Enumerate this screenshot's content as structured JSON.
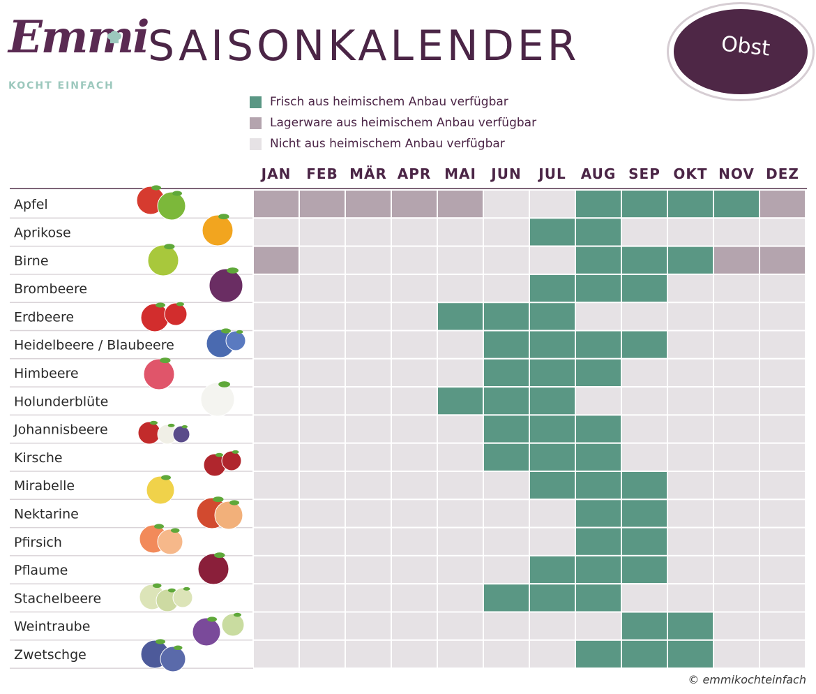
{
  "header": {
    "logo_script": "Emmi",
    "logo_sub": "KOCHT EINFACH",
    "title": "SAISONKALENDER",
    "badge": "Obst"
  },
  "legend": [
    {
      "label": "Frisch aus heimischem Anbau verfügbar",
      "color": "#5a9784"
    },
    {
      "label": "Lagerware aus heimischem Anbau verfügbar",
      "color": "#b4a4ae"
    },
    {
      "label": "Nicht aus heimischem Anbau verfügbar",
      "color": "#e6e2e5"
    }
  ],
  "footer": "© emmikochteinfach",
  "colors": {
    "fresh": "#5a9784",
    "storage": "#b4a4ae",
    "none": "#e6e2e5",
    "text": "#4b2546",
    "header_line": "#7d6477"
  },
  "chart_data": {
    "type": "heatmap",
    "title": "SAISONKALENDER",
    "subtitle": "Obst",
    "x": [
      "JAN",
      "FEB",
      "MÄR",
      "APR",
      "MAI",
      "JUN",
      "JUL",
      "AUG",
      "SEP",
      "OKT",
      "NOV",
      "DEZ"
    ],
    "legend": {
      "F": "Frisch aus heimischem Anbau verfügbar",
      "L": "Lagerware aus heimischem Anbau verfügbar",
      "N": "Nicht aus heimischem Anbau verfügbar"
    },
    "rows": [
      {
        "name": "Apfel",
        "icon": "apple-icon",
        "values": [
          "L",
          "L",
          "L",
          "L",
          "L",
          "N",
          "N",
          "F",
          "F",
          "F",
          "F",
          "L"
        ]
      },
      {
        "name": "Aprikose",
        "icon": "apricot-icon",
        "values": [
          "N",
          "N",
          "N",
          "N",
          "N",
          "N",
          "F",
          "F",
          "N",
          "N",
          "N",
          "N"
        ]
      },
      {
        "name": "Birne",
        "icon": "pear-icon",
        "values": [
          "L",
          "N",
          "N",
          "N",
          "N",
          "N",
          "N",
          "F",
          "F",
          "F",
          "L",
          "L"
        ]
      },
      {
        "name": "Brombeere",
        "icon": "blackberry-icon",
        "values": [
          "N",
          "N",
          "N",
          "N",
          "N",
          "N",
          "F",
          "F",
          "F",
          "N",
          "N",
          "N"
        ]
      },
      {
        "name": "Erdbeere",
        "icon": "strawberry-icon",
        "values": [
          "N",
          "N",
          "N",
          "N",
          "F",
          "F",
          "F",
          "N",
          "N",
          "N",
          "N",
          "N"
        ]
      },
      {
        "name": "Heidelbeere / Blaubeere",
        "icon": "blueberry-icon",
        "values": [
          "N",
          "N",
          "N",
          "N",
          "N",
          "F",
          "F",
          "F",
          "F",
          "N",
          "N",
          "N"
        ]
      },
      {
        "name": "Himbeere",
        "icon": "raspberry-icon",
        "values": [
          "N",
          "N",
          "N",
          "N",
          "N",
          "F",
          "F",
          "F",
          "N",
          "N",
          "N",
          "N"
        ]
      },
      {
        "name": "Holunderblüte",
        "icon": "elderflower-icon",
        "values": [
          "N",
          "N",
          "N",
          "N",
          "F",
          "F",
          "F",
          "N",
          "N",
          "N",
          "N",
          "N"
        ]
      },
      {
        "name": "Johannisbeere",
        "icon": "currant-icon",
        "values": [
          "N",
          "N",
          "N",
          "N",
          "N",
          "F",
          "F",
          "F",
          "N",
          "N",
          "N",
          "N"
        ]
      },
      {
        "name": "Kirsche",
        "icon": "cherry-icon",
        "values": [
          "N",
          "N",
          "N",
          "N",
          "N",
          "F",
          "F",
          "F",
          "N",
          "N",
          "N",
          "N"
        ]
      },
      {
        "name": "Mirabelle",
        "icon": "mirabelle-icon",
        "values": [
          "N",
          "N",
          "N",
          "N",
          "N",
          "N",
          "F",
          "F",
          "F",
          "N",
          "N",
          "N"
        ]
      },
      {
        "name": "Nektarine",
        "icon": "nectarine-icon",
        "values": [
          "N",
          "N",
          "N",
          "N",
          "N",
          "N",
          "N",
          "F",
          "F",
          "N",
          "N",
          "N"
        ]
      },
      {
        "name": "Pfirsich",
        "icon": "peach-icon",
        "values": [
          "N",
          "N",
          "N",
          "N",
          "N",
          "N",
          "N",
          "F",
          "F",
          "N",
          "N",
          "N"
        ]
      },
      {
        "name": "Pflaume",
        "icon": "plum-icon",
        "values": [
          "N",
          "N",
          "N",
          "N",
          "N",
          "N",
          "F",
          "F",
          "F",
          "N",
          "N",
          "N"
        ]
      },
      {
        "name": "Stachelbeere",
        "icon": "gooseberry-icon",
        "values": [
          "N",
          "N",
          "N",
          "N",
          "N",
          "F",
          "F",
          "F",
          "N",
          "N",
          "N",
          "N"
        ]
      },
      {
        "name": "Weintraube",
        "icon": "grape-icon",
        "values": [
          "N",
          "N",
          "N",
          "N",
          "N",
          "N",
          "N",
          "N",
          "F",
          "F",
          "N",
          "N"
        ]
      },
      {
        "name": "Zwetschge",
        "icon": "damson-icon",
        "values": [
          "N",
          "N",
          "N",
          "N",
          "N",
          "N",
          "N",
          "F",
          "F",
          "F",
          "N",
          "N"
        ]
      }
    ]
  }
}
